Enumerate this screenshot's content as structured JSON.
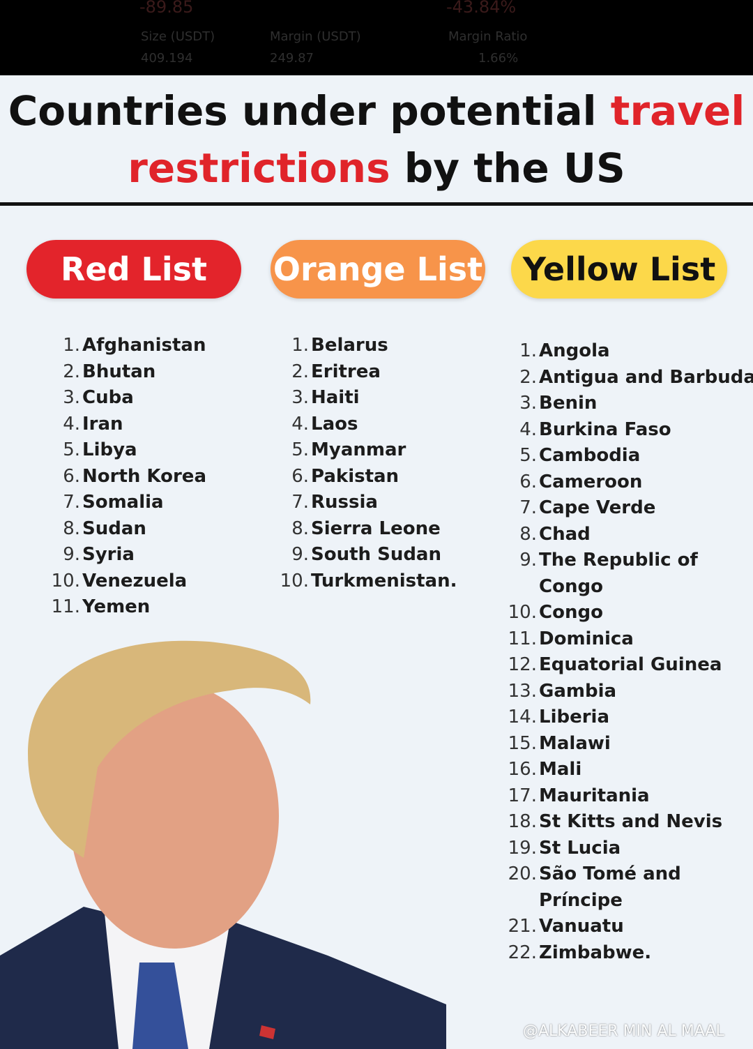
{
  "top_bar": {
    "pnl": "-89.85",
    "pnl_percent": "-43.84%",
    "size_label": "Size (USDT)",
    "margin_label": "Margin (USDT)",
    "ratio_label": "Margin Ratio",
    "size_value": "409.194",
    "margin_value": "249.87",
    "ratio_value": "1.66%"
  },
  "header": {
    "title_parts": [
      {
        "text": "Countries under potential ",
        "color": "#111111"
      },
      {
        "text": "travel",
        "color": "#e0242a"
      },
      {
        "text": "restrictions",
        "color": "#e0242a"
      },
      {
        "text": " by the US",
        "color": "#111111"
      }
    ]
  },
  "lists": [
    {
      "title": "Red List",
      "color": "#e3242b",
      "text_color": "#ffffff",
      "items": [
        {
          "number": "1.",
          "name": "Afghanistan"
        },
        {
          "number": "2.",
          "name": "Bhutan"
        },
        {
          "number": "3.",
          "name": "Cuba"
        },
        {
          "number": "4.",
          "name": "Iran"
        },
        {
          "number": "5.",
          "name": "Libya"
        },
        {
          "number": "6.",
          "name": "North Korea"
        },
        {
          "number": "7.",
          "name": "Somalia"
        },
        {
          "number": "8.",
          "name": "Sudan"
        },
        {
          "number": "9.",
          "name": "Syria"
        },
        {
          "number": "10.",
          "name": "Venezuela"
        },
        {
          "number": "11.",
          "name": "Yemen"
        }
      ]
    },
    {
      "title": "Orange List",
      "color": "#f7944a",
      "text_color": "#ffffff",
      "items": [
        {
          "number": "1.",
          "name": "Belarus"
        },
        {
          "number": "2.",
          "name": "Eritrea"
        },
        {
          "number": "3.",
          "name": "Haiti"
        },
        {
          "number": "4.",
          "name": "Laos"
        },
        {
          "number": "5.",
          "name": "Myanmar"
        },
        {
          "number": "6.",
          "name": "Pakistan"
        },
        {
          "number": "7.",
          "name": "Russia"
        },
        {
          "number": "8.",
          "name": "Sierra Leone"
        },
        {
          "number": "9.",
          "name": "South Sudan"
        },
        {
          "number": "10.",
          "name": "Turkmenistan."
        }
      ]
    },
    {
      "title": "Yellow List",
      "color": "#fcd84a",
      "text_color": "#111111",
      "items": [
        {
          "number": "1.",
          "name": "Angola"
        },
        {
          "number": "2.",
          "name": "Antigua and Barbuda"
        },
        {
          "number": "3.",
          "name": "Benin"
        },
        {
          "number": "4.",
          "name": "Burkina Faso"
        },
        {
          "number": "5.",
          "name": "Cambodia"
        },
        {
          "number": "6.",
          "name": "Cameroon"
        },
        {
          "number": "7.",
          "name": "Cape Verde"
        },
        {
          "number": "8.",
          "name": "Chad"
        },
        {
          "number": "9.",
          "name_lines": [
            "The Republic of",
            "Congo"
          ]
        },
        {
          "number": "10.",
          "name": "Congo"
        },
        {
          "number": "11.",
          "name": "Dominica"
        },
        {
          "number": "12.",
          "name": "Equatorial Guinea"
        },
        {
          "number": "13.",
          "name": "Gambia"
        },
        {
          "number": "14.",
          "name": "Liberia"
        },
        {
          "number": "15.",
          "name": "Malawi"
        },
        {
          "number": "16.",
          "name": "Mali"
        },
        {
          "number": "17.",
          "name": "Mauritania"
        },
        {
          "number": "18.",
          "name": "St Kitts and Nevis"
        },
        {
          "number": "19.",
          "name": "St Lucia"
        },
        {
          "number": "20.",
          "name_lines": [
            "São Tomé and",
            "Príncipe"
          ]
        },
        {
          "number": "21.",
          "name": "Vanuatu"
        },
        {
          "number": "22.",
          "name": "Zimbabwe."
        }
      ]
    }
  ],
  "watermark": "@ALKABEER MIN AL MAAL"
}
